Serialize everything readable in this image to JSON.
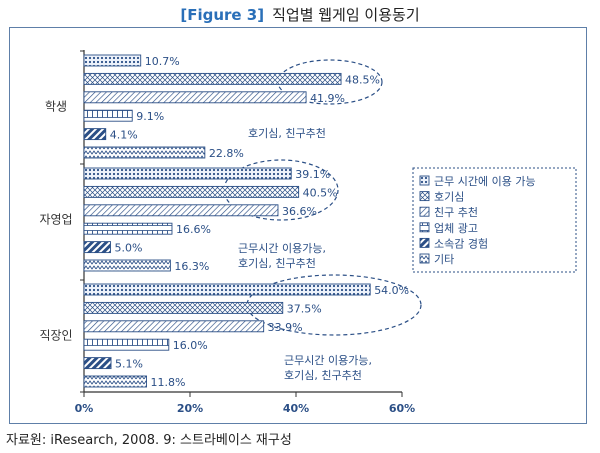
{
  "figure_label": "[Figure 3]",
  "title": "직업별 웹게임 이용동기",
  "source": "자료원: iResearch, 2008. 9: 스트라베이스 재구성",
  "colors": {
    "bar_stroke": "#2b4f86",
    "accent": "#2a6fb8",
    "text": "#2b4f86"
  },
  "chart_data": {
    "type": "bar",
    "orientation": "horizontal",
    "categories": [
      "학생",
      "자영업",
      "직장인"
    ],
    "series": [
      {
        "name": "근무 시간에 이용 가능",
        "pattern": "dots",
        "values": [
          10.7,
          39.1,
          54.0
        ]
      },
      {
        "name": "호기심",
        "pattern": "cross",
        "values": [
          48.5,
          40.5,
          37.5
        ]
      },
      {
        "name": "친구 추천",
        "pattern": "diag-dense",
        "values": [
          41.9,
          36.6,
          33.9
        ]
      },
      {
        "name": "업체 광고",
        "pattern": "ladder",
        "values": [
          9.1,
          16.6,
          16.0
        ]
      },
      {
        "name": "소속감 경험",
        "pattern": "solid-diag",
        "values": [
          4.1,
          5.0,
          5.1
        ]
      },
      {
        "name": "기타",
        "pattern": "zigzag",
        "values": [
          22.8,
          16.3,
          11.8
        ]
      }
    ],
    "xticks": [
      "0%",
      "20%",
      "40%",
      "60%"
    ],
    "xlim": [
      0,
      60
    ],
    "annotations": [
      {
        "group": 0,
        "lines": [
          "호기심, 친구추천"
        ]
      },
      {
        "group": 1,
        "lines": [
          "근무시간 이용가능,",
          "호기심, 친구추천"
        ]
      },
      {
        "group": 2,
        "lines": [
          "근무시간 이용가능,",
          "호기심, 친구추천"
        ]
      }
    ],
    "legend_position": "right",
    "grid": false
  }
}
